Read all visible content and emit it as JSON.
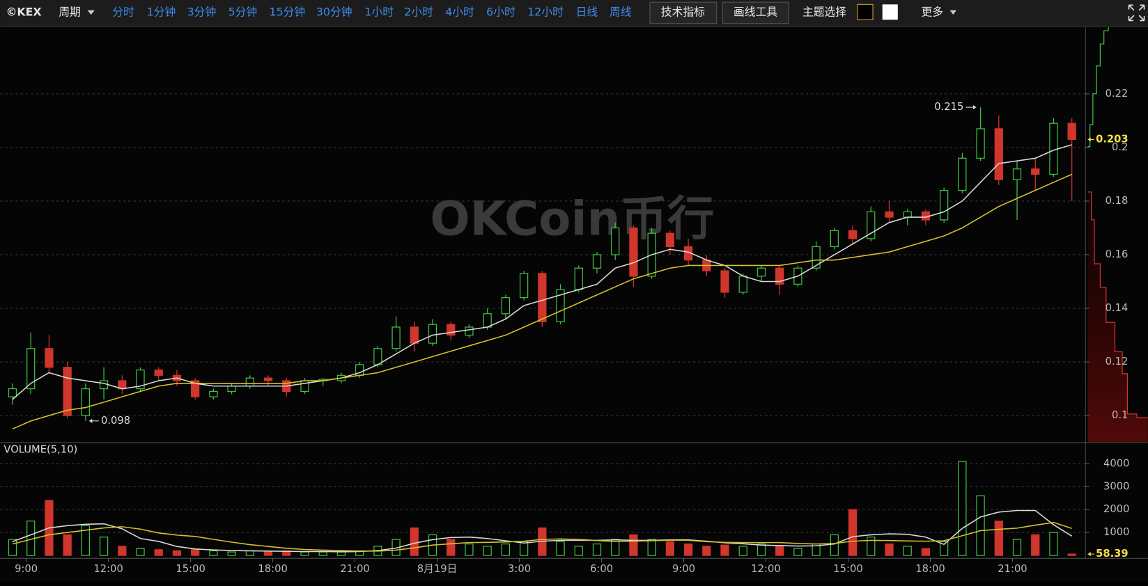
{
  "toolbar": {
    "logo": "©KEX",
    "period": "周期",
    "intervals": [
      "分时",
      "1分钟",
      "3分钟",
      "5分钟",
      "15分钟",
      "30分钟",
      "1小时",
      "2小时",
      "4小时",
      "6小时",
      "12小时",
      "日线",
      "周线"
    ],
    "active_interval": "15分钟",
    "indicators": "技术指标",
    "drawing_tools": "画线工具",
    "theme": "主题选择",
    "more": "更多"
  },
  "watermark": "OKCoin币行",
  "chart_data": [
    {
      "type": "candlestick",
      "up_color": "#3fc23f",
      "down_color": "#d0362c",
      "xlim": [
        -0.68,
        58.75
      ],
      "ylim": [
        0.0902,
        0.2449
      ],
      "yticks": [
        0.1,
        0.12,
        0.14,
        0.16,
        0.18,
        0.2,
        0.22
      ],
      "grid": true,
      "open": [
        0.107,
        0.11,
        0.125,
        0.118,
        0.1,
        0.11,
        0.113,
        0.11,
        0.117,
        0.115,
        0.113,
        0.107,
        0.109,
        0.111,
        0.114,
        0.113,
        0.109,
        0.113,
        0.113,
        0.115,
        0.119,
        0.125,
        0.133,
        0.127,
        0.134,
        0.13,
        0.133,
        0.138,
        0.144,
        0.153,
        0.135,
        0.147,
        0.155,
        0.16,
        0.17,
        0.152,
        0.168,
        0.163,
        0.158,
        0.154,
        0.146,
        0.152,
        0.155,
        0.149,
        0.155,
        0.163,
        0.169,
        0.166,
        0.176,
        0.174,
        0.176,
        0.173,
        0.184,
        0.196,
        0.207,
        0.188,
        0.192,
        0.19,
        0.209
      ],
      "high": [
        0.112,
        0.131,
        0.13,
        0.12,
        0.112,
        0.118,
        0.115,
        0.118,
        0.118,
        0.117,
        0.114,
        0.11,
        0.112,
        0.115,
        0.115,
        0.114,
        0.114,
        0.114,
        0.116,
        0.12,
        0.126,
        0.137,
        0.135,
        0.136,
        0.135,
        0.134,
        0.14,
        0.145,
        0.154,
        0.154,
        0.149,
        0.156,
        0.161,
        0.172,
        0.171,
        0.17,
        0.169,
        0.166,
        0.16,
        0.155,
        0.153,
        0.156,
        0.156,
        0.156,
        0.165,
        0.17,
        0.171,
        0.178,
        0.18,
        0.177,
        0.177,
        0.185,
        0.198,
        0.215,
        0.212,
        0.195,
        0.196,
        0.211,
        0.211
      ],
      "low": [
        0.104,
        0.108,
        0.116,
        0.099,
        0.098,
        0.106,
        0.108,
        0.109,
        0.113,
        0.111,
        0.106,
        0.106,
        0.108,
        0.11,
        0.111,
        0.107,
        0.108,
        0.111,
        0.112,
        0.114,
        0.118,
        0.124,
        0.124,
        0.126,
        0.128,
        0.129,
        0.132,
        0.136,
        0.143,
        0.133,
        0.134,
        0.146,
        0.153,
        0.158,
        0.148,
        0.151,
        0.16,
        0.156,
        0.152,
        0.144,
        0.145,
        0.15,
        0.145,
        0.148,
        0.154,
        0.162,
        0.164,
        0.165,
        0.172,
        0.171,
        0.171,
        0.172,
        0.183,
        0.195,
        0.186,
        0.173,
        0.184,
        0.189,
        0.18
      ],
      "close": [
        0.11,
        0.125,
        0.118,
        0.1,
        0.11,
        0.113,
        0.11,
        0.117,
        0.115,
        0.113,
        0.107,
        0.109,
        0.111,
        0.114,
        0.113,
        0.109,
        0.113,
        0.1135,
        0.115,
        0.119,
        0.125,
        0.133,
        0.127,
        0.134,
        0.13,
        0.133,
        0.138,
        0.144,
        0.153,
        0.135,
        0.147,
        0.155,
        0.16,
        0.17,
        0.152,
        0.168,
        0.163,
        0.158,
        0.154,
        0.146,
        0.152,
        0.155,
        0.149,
        0.155,
        0.163,
        0.169,
        0.166,
        0.176,
        0.174,
        0.176,
        0.173,
        0.184,
        0.196,
        0.207,
        0.188,
        0.192,
        0.19,
        0.209,
        0.203
      ],
      "series": [
        {
          "color": "#d8d8d8",
          "values": [
            0.106,
            0.112,
            0.116,
            0.114,
            0.113,
            0.112,
            0.11,
            0.111,
            0.113,
            0.114,
            0.112,
            0.111,
            0.111,
            0.111,
            0.111,
            0.111,
            0.112,
            0.113,
            0.114,
            0.116,
            0.119,
            0.123,
            0.127,
            0.13,
            0.131,
            0.132,
            0.133,
            0.136,
            0.141,
            0.143,
            0.145,
            0.147,
            0.149,
            0.155,
            0.157,
            0.16,
            0.162,
            0.161,
            0.158,
            0.156,
            0.152,
            0.15,
            0.15,
            0.152,
            0.156,
            0.16,
            0.164,
            0.168,
            0.172,
            0.174,
            0.174,
            0.176,
            0.18,
            0.187,
            0.194,
            0.195,
            0.196,
            0.199,
            0.201
          ]
        },
        {
          "color": "#d6c12a",
          "values": [
            0.095,
            0.098,
            0.1,
            0.102,
            0.103,
            0.105,
            0.107,
            0.109,
            0.111,
            0.112,
            0.112,
            0.112,
            0.112,
            0.112,
            0.112,
            0.112,
            0.113,
            0.113,
            0.114,
            0.115,
            0.116,
            0.118,
            0.12,
            0.122,
            0.124,
            0.126,
            0.128,
            0.13,
            0.133,
            0.136,
            0.139,
            0.142,
            0.145,
            0.148,
            0.151,
            0.153,
            0.155,
            0.156,
            0.156,
            0.156,
            0.156,
            0.156,
            0.156,
            0.157,
            0.158,
            0.158,
            0.159,
            0.16,
            0.161,
            0.163,
            0.165,
            0.167,
            0.17,
            0.174,
            0.178,
            0.181,
            0.184,
            0.187,
            0.19
          ]
        }
      ]
    },
    {
      "type": "bar",
      "title": "VOLUME(5,10)",
      "xlim": [
        -0.68,
        58.75
      ],
      "ylim": [
        -128,
        4895
      ],
      "yticks": [
        1000,
        2000,
        3000,
        4000
      ],
      "grid": true,
      "xticks": [
        {
          "value": 0.75,
          "label": "9:00"
        },
        {
          "value": 5.25,
          "label": "12:00"
        },
        {
          "value": 9.75,
          "label": "15:00"
        },
        {
          "value": 14.25,
          "label": "18:00"
        },
        {
          "value": 18.75,
          "label": "21:00"
        },
        {
          "value": 23.25,
          "label": "8月19日"
        },
        {
          "value": 27.75,
          "label": "3:00"
        },
        {
          "value": 32.25,
          "label": "6:00"
        },
        {
          "value": 36.75,
          "label": "9:00"
        },
        {
          "value": 41.25,
          "label": "12:00"
        },
        {
          "value": 45.75,
          "label": "15:00"
        },
        {
          "value": 50.25,
          "label": "18:00"
        },
        {
          "value": 54.75,
          "label": "21:00"
        }
      ],
      "values": [
        700,
        1500,
        2400,
        900,
        1300,
        800,
        400,
        300,
        250,
        200,
        250,
        200,
        150,
        200,
        150,
        200,
        150,
        150,
        150,
        200,
        400,
        700,
        1200,
        900,
        700,
        500,
        400,
        500,
        600,
        1200,
        600,
        400,
        500,
        700,
        900,
        700,
        600,
        500,
        400,
        450,
        400,
        500,
        400,
        300,
        500,
        900,
        2000,
        800,
        500,
        400,
        300,
        600,
        4100,
        2600,
        1500,
        700,
        900,
        1000,
        58.39
      ],
      "series": [
        {
          "color": "#d8d8d8",
          "values": [
            600,
            900,
            1200,
            1300,
            1360,
            1380,
            1160,
            740,
            610,
            390,
            280,
            240,
            210,
            200,
            190,
            180,
            170,
            170,
            160,
            170,
            210,
            320,
            530,
            690,
            780,
            800,
            740,
            640,
            540,
            620,
            660,
            660,
            660,
            680,
            660,
            660,
            680,
            680,
            620,
            550,
            510,
            450,
            430,
            410,
            420,
            500,
            820,
            900,
            940,
            920,
            800,
            480,
            1180,
            1680,
            1890,
            1960,
            1960,
            1340,
            840
          ]
        },
        {
          "color": "#d6c12a",
          "values": [
            500,
            700,
            900,
            1000,
            1100,
            1200,
            1250,
            1150,
            980,
            890,
            830,
            700,
            580,
            470,
            390,
            310,
            260,
            230,
            210,
            190,
            190,
            230,
            330,
            450,
            510,
            560,
            570,
            590,
            620,
            700,
            720,
            700,
            650,
            610,
            620,
            640,
            670,
            660,
            600,
            570,
            560,
            560,
            560,
            520,
            500,
            520,
            620,
            660,
            650,
            630,
            620,
            640,
            860,
            1080,
            1140,
            1190,
            1320,
            1440,
            1180
          ]
        }
      ]
    }
  ]
}
